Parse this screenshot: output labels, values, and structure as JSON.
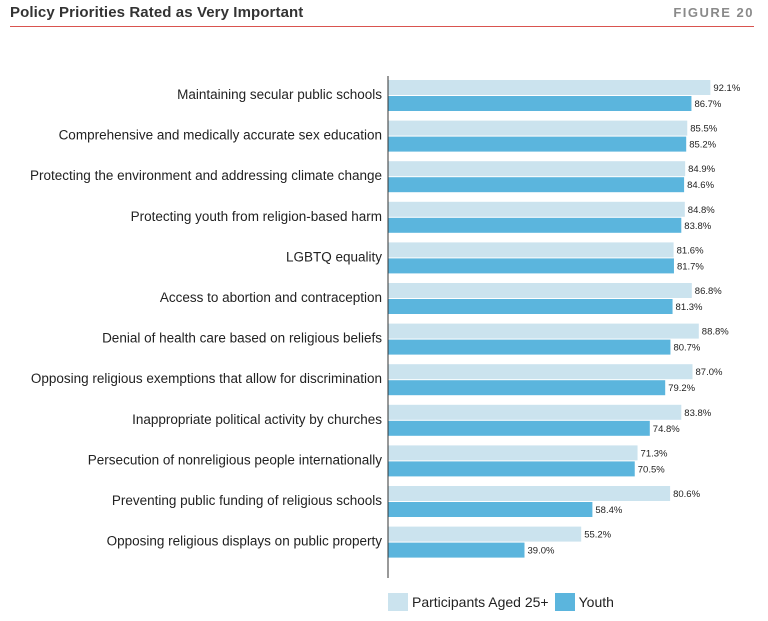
{
  "header": {
    "title": "Policy Priorities Rated as Very Important",
    "figure": "FIGURE 20"
  },
  "colors": {
    "participants": "#cbe3ee",
    "youth": "#5bb5dd",
    "rule": "#d9534f"
  },
  "chart_data": {
    "type": "bar",
    "orientation": "horizontal",
    "title": "Policy Priorities Rated as Very Important",
    "xlim": [
      0,
      100
    ],
    "grid": false,
    "legend_position": "bottom",
    "categories": [
      "Maintaining secular public schools",
      "Comprehensive and medically accurate sex education",
      "Protecting the environment and addressing climate change",
      "Protecting youth from religion-based harm",
      "LGBTQ equality",
      "Access to abortion and contraception",
      "Denial of health care based on religious beliefs",
      "Opposing religious exemptions that allow for discrimination",
      "Inappropriate political activity by churches",
      "Persecution of nonreligious people internationally",
      "Preventing public funding of religious schools",
      "Opposing religious displays on public property"
    ],
    "series": [
      {
        "name": "Participants Aged 25+",
        "values": [
          92.1,
          85.5,
          84.9,
          84.8,
          81.6,
          86.8,
          88.8,
          87.0,
          83.8,
          71.3,
          80.6,
          55.2
        ],
        "labels": [
          "92.1%",
          "85.5%",
          "84.9%",
          "84.8%",
          "81.6%",
          "86.8%",
          "88.8%",
          "87.0%",
          "83.8%",
          "71.3%",
          "80.6%",
          "55.2%"
        ]
      },
      {
        "name": "Youth",
        "values": [
          86.7,
          85.2,
          84.6,
          83.8,
          81.7,
          81.3,
          80.7,
          79.2,
          74.8,
          70.5,
          58.4,
          39.0
        ],
        "labels": [
          "86.7%",
          "85.2%",
          "84.6%",
          "83.8%",
          "81.7%",
          "81.3%",
          "80.7%",
          "79.2%",
          "74.8%",
          "70.5%",
          "58.4%",
          "39.0%"
        ]
      }
    ]
  }
}
